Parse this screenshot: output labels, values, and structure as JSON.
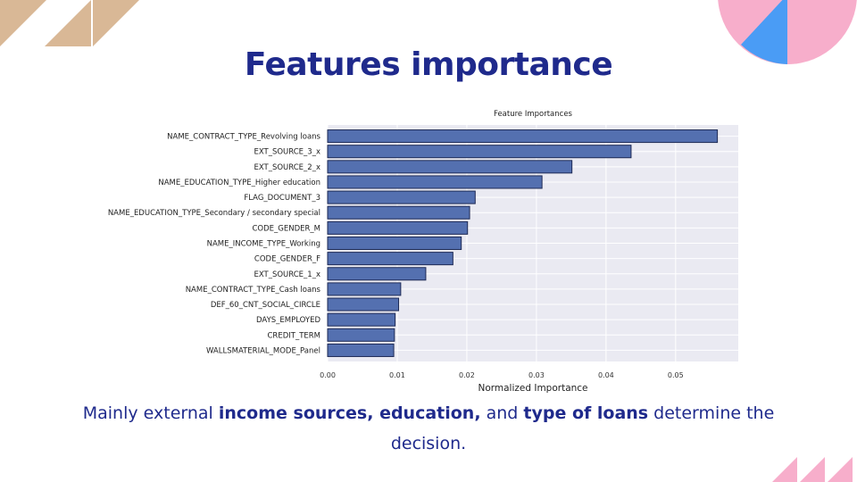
{
  "slide": {
    "title": "Features importance",
    "caption": {
      "part1": "Mainly external ",
      "bold1": "income sources, education,",
      "part2": " and ",
      "bold2": "type of loans",
      "part3": " determine the decision."
    }
  },
  "colors": {
    "title": "#1f2a8c",
    "bar": "#5470b0",
    "bar_edge": "#1e2a55",
    "plot_bg": "#eaeaf2",
    "deco_tan": "#d9b896",
    "deco_pink": "#f7aecb",
    "deco_blue": "#4a9cf5"
  },
  "chart_data": {
    "type": "bar",
    "orientation": "horizontal",
    "title": "Feature Importances",
    "xlabel": "Normalized Importance",
    "ylabel": "",
    "xlim": [
      0,
      0.059
    ],
    "xticks": [
      "0.00",
      "0.01",
      "0.02",
      "0.03",
      "0.04",
      "0.05"
    ],
    "grid": true,
    "categories": [
      "NAME_CONTRACT_TYPE_Revolving loans",
      "EXT_SOURCE_3_x",
      "EXT_SOURCE_2_x",
      "NAME_EDUCATION_TYPE_Higher education",
      "FLAG_DOCUMENT_3",
      "NAME_EDUCATION_TYPE_Secondary / secondary special",
      "CODE_GENDER_M",
      "NAME_INCOME_TYPE_Working",
      "CODE_GENDER_F",
      "EXT_SOURCE_1_x",
      "NAME_CONTRACT_TYPE_Cash loans",
      "DEF_60_CNT_SOCIAL_CIRCLE",
      "DAYS_EMPLOYED",
      "CREDIT_TERM",
      "WALLSMATERIAL_MODE_Panel"
    ],
    "values": [
      0.056,
      0.0436,
      0.0351,
      0.0308,
      0.0212,
      0.0204,
      0.0201,
      0.0192,
      0.018,
      0.0141,
      0.0105,
      0.0102,
      0.0097,
      0.0096,
      0.0095
    ]
  }
}
